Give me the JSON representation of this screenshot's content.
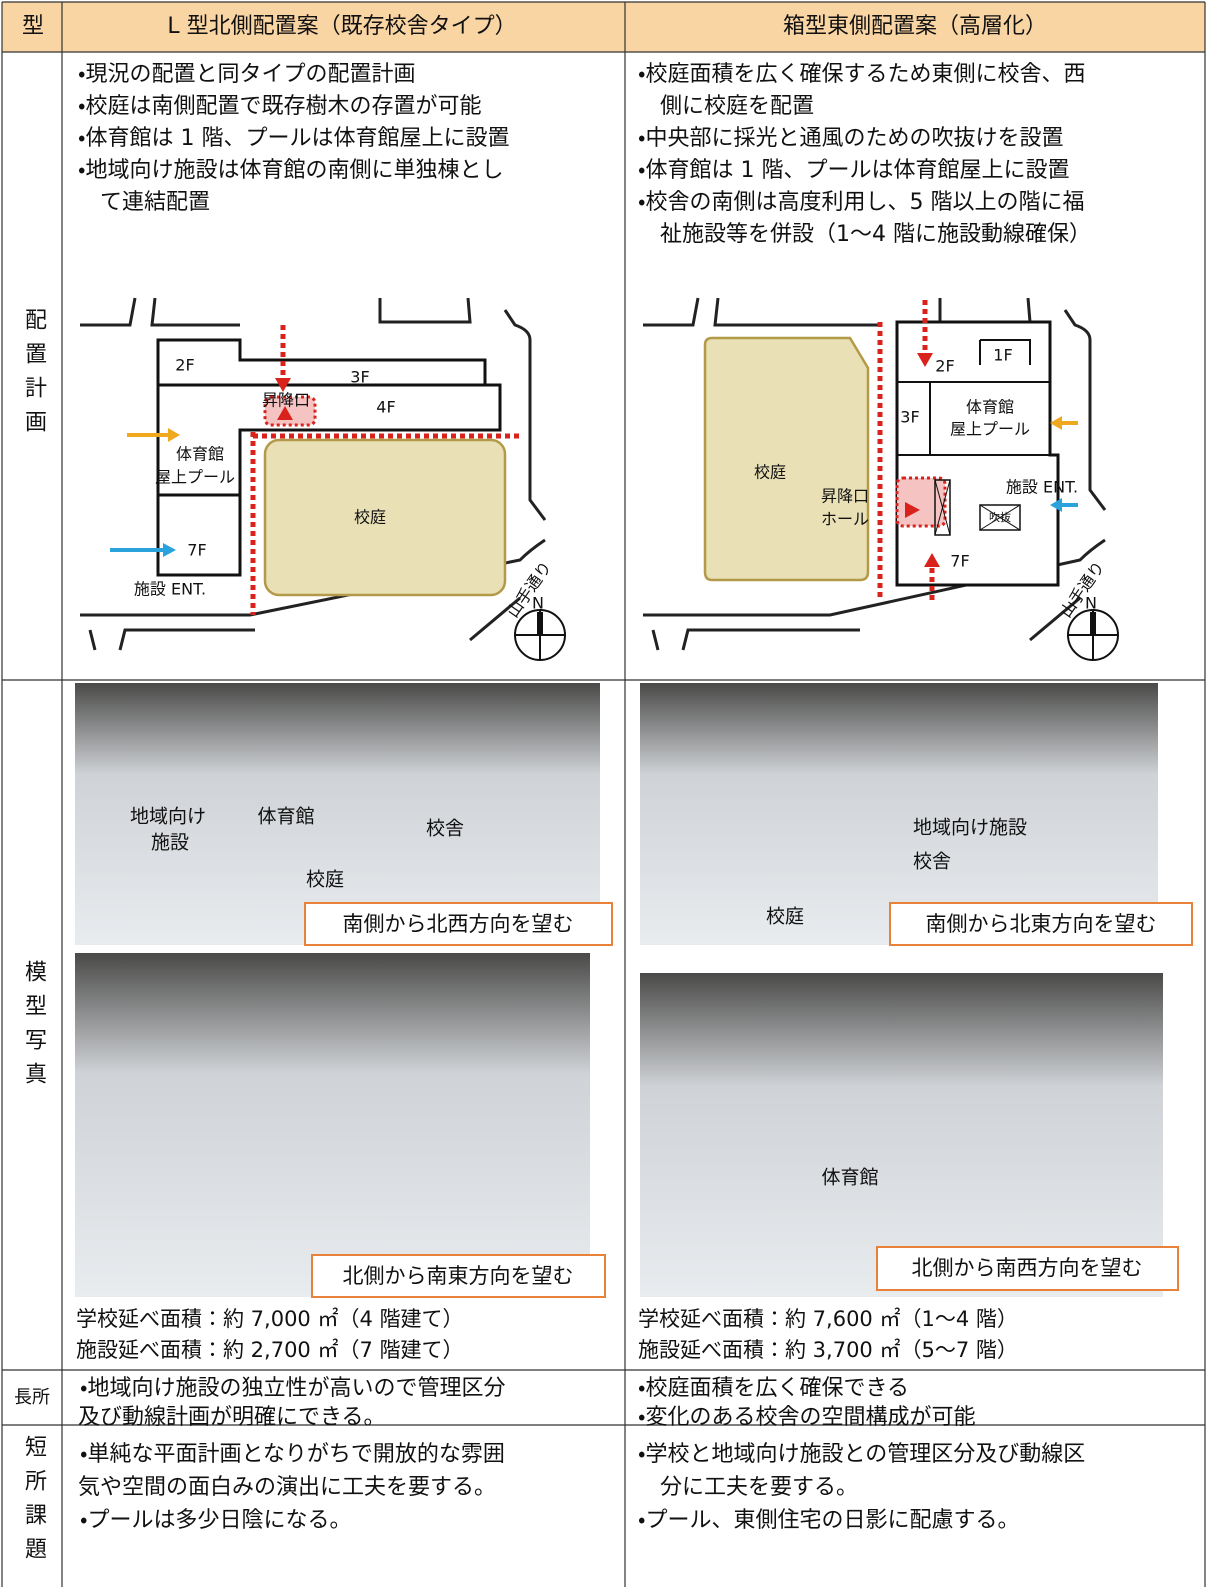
{
  "header": {
    "type": "型",
    "plan_a": "L 型北側配置案（既存校舎タイプ）",
    "plan_b": "箱型東側配置案（高層化）"
  },
  "layout": {
    "label": "配置計画",
    "plan_a": {
      "lines": [
        "・現況の配置と同タイプの配置計画",
        "・校庭は南側配置で既存樹木の存置が可能",
        "・体育館は 1 階、プールは体育館屋上に設置",
        "・地域向け施設は体育館の南側に単独棟とし",
        "て連結配置"
      ],
      "map_labels": [
        "2F",
        "3F",
        "4F",
        "昇降口",
        "体育館",
        "屋上プール",
        "校庭",
        "7F",
        "施設 ENT.",
        "山手通り",
        "N"
      ]
    },
    "plan_b": {
      "lines": [
        "・校庭面積を広く確保するため東側に校舎、西",
        "側に校庭を配置",
        "・中央部に採光と通風のための吹抜けを設置",
        "・体育館は 1 階、プールは体育館屋上に設置",
        "・校舎の南側は高度利用し、5 階以上の階に福",
        "祉施設等を併設（1〜4 階に施設動線確保）"
      ],
      "map_labels": [
        "2F",
        "1F",
        "3F",
        "体育館",
        "屋上プール",
        "校庭",
        "昇降口",
        "ホール",
        "施設 ENT.",
        "吹抜",
        "7F",
        "山手通り",
        "N"
      ]
    }
  },
  "model": {
    "label": "模型写真",
    "plan_a": {
      "photos": [
        {
          "labels": [
            "地域向け",
            "施設",
            "体育館",
            "校舎",
            "校庭"
          ],
          "caption": "南側から北西方向を望む"
        },
        {
          "caption": "北側から南東方向を望む"
        }
      ],
      "areas": [
        "学校延べ面積：約 7,000 ㎡（4 階建て）",
        "施設延べ面積：約 2,700 ㎡（7 階建て）"
      ]
    },
    "plan_b": {
      "photos": [
        {
          "labels": [
            "地域向け施設",
            "校舎",
            "校庭"
          ],
          "caption": "南側から北東方向を望む"
        },
        {
          "labels": [
            "体育館"
          ],
          "caption": "北側から南西方向を望む"
        }
      ],
      "areas": [
        "学校延べ面積：約 7,600 ㎡（1〜4 階）",
        "施設延べ面積：約 3,700 ㎡（5〜7 階）"
      ]
    }
  },
  "strengths": {
    "label": "長所",
    "plan_a": [
      "・地域向け施設の独立性が高いので管理区分",
      "及び動線計画が明確にできる。"
    ],
    "plan_b": [
      "・校庭面積を広く確保できる",
      "・変化のある校舎の空間構成が可能"
    ]
  },
  "issues": {
    "label": "短所課題",
    "plan_a": [
      "・単純な平面計画となりがちで開放的な雰囲",
      "気や空間の面白みの演出に工夫を要する。",
      "・プールは多少日陰になる。"
    ],
    "plan_b": [
      "・学校と地域向け施設との管理区分及び動線区",
      "分に工夫を要する。",
      "・プール、東側住宅の日影に配慮する。"
    ]
  }
}
